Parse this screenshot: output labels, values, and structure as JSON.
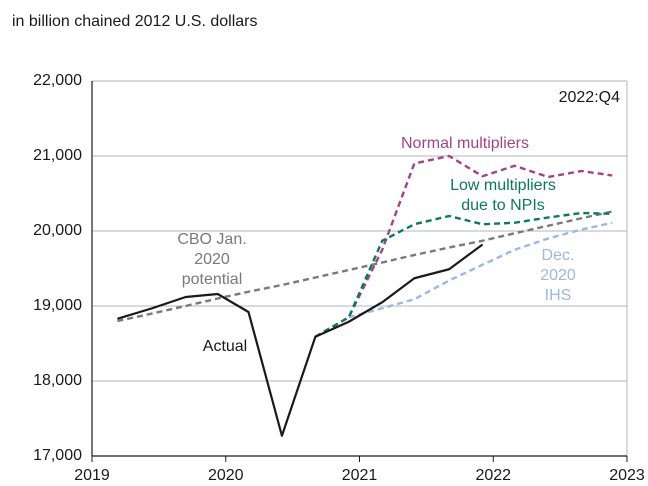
{
  "chart_data": {
    "type": "line",
    "subtitle": "in billion chained 2012 U.S. dollars",
    "annotation": "2022:Q4",
    "x": [
      2019.19,
      2019.45,
      2019.7,
      2019.94,
      2020.17,
      2020.42,
      2020.67,
      2020.92,
      2021.17,
      2021.41,
      2021.67,
      2021.92,
      2022.16,
      2022.41,
      2022.66,
      2022.89
    ],
    "xlim": [
      2019,
      2023
    ],
    "xticks": [
      2019,
      2020,
      2021,
      2022,
      2023
    ],
    "ylim": [
      17000,
      22000
    ],
    "yticks": [
      {
        "value": 17000,
        "label": "17,000"
      },
      {
        "value": 18000,
        "label": "18,000"
      },
      {
        "value": 19000,
        "label": "19,000"
      },
      {
        "value": 20000,
        "label": "20,000"
      },
      {
        "value": 21000,
        "label": "21,000"
      },
      {
        "value": 22000,
        "label": "22,000"
      }
    ],
    "grid": true,
    "series": [
      {
        "name": [
          "CBO Jan.",
          "2020",
          "potential"
        ],
        "color": "#7a7a7a",
        "dashed": true,
        "values": [
          18800,
          18900,
          19000,
          19100,
          19190,
          19280,
          19380,
          19480,
          19580,
          19680,
          19780,
          19870,
          19970,
          20070,
          20170,
          20260
        ]
      },
      {
        "name": [
          "Dec.",
          "2020",
          "IHS"
        ],
        "color": "#9db8e0",
        "dashed": true,
        "values": [
          null,
          null,
          null,
          null,
          null,
          null,
          null,
          18850,
          18970,
          19090,
          19340,
          19550,
          19750,
          19900,
          20020,
          20110
        ]
      },
      {
        "name": [
          "Normal multipliers"
        ],
        "color": "#a0448a",
        "dashed": true,
        "values": [
          null,
          null,
          null,
          null,
          null,
          null,
          18590,
          18850,
          19750,
          20900,
          21000,
          20730,
          20870,
          20720,
          20800,
          20740
        ]
      },
      {
        "name": [
          "Low multipliers",
          "due to NPIs"
        ],
        "color": "#0a7a5a",
        "dashed": true,
        "values": [
          null,
          null,
          null,
          null,
          null,
          null,
          18590,
          18850,
          19870,
          20090,
          20200,
          20090,
          20110,
          20180,
          20240,
          20230
        ]
      },
      {
        "name": [
          "Actual"
        ],
        "color": "#1a1a1a",
        "dashed": false,
        "values": [
          18830,
          18970,
          19120,
          19160,
          18920,
          17270,
          18590,
          18790,
          19050,
          19370,
          19490,
          19820,
          null,
          null,
          null,
          null
        ]
      }
    ]
  }
}
